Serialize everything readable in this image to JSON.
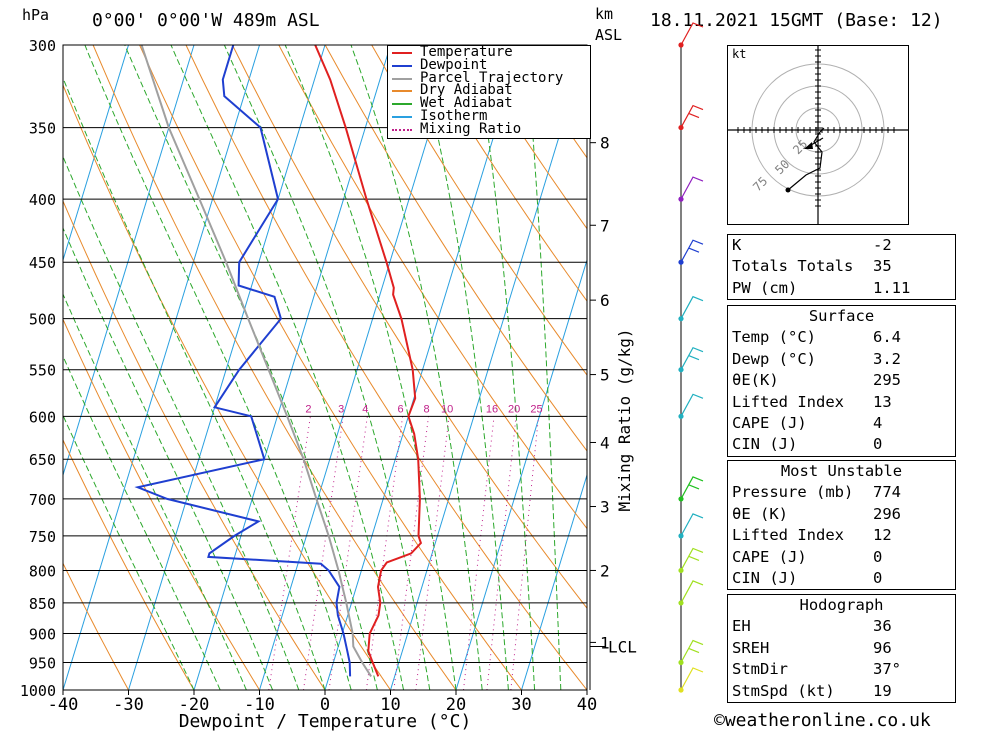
{
  "header": {
    "unit_left": "hPa",
    "location": "0°00' 0°00'W 489m ASL",
    "unit_km": "km",
    "unit_asl": "ASL",
    "datetime": "18.11.2021 15GMT (Base: 12)"
  },
  "axes": {
    "xlabel": "Dewpoint / Temperature (°C)",
    "mixing_label": "Mixing Ratio (g/kg)",
    "lcl_label": "LCL",
    "kt_label": "kt"
  },
  "legend": [
    {
      "label": "Temperature",
      "color": "#e02020"
    },
    {
      "label": "Dewpoint",
      "color": "#1f3fd0"
    },
    {
      "label": "Parcel Trajectory",
      "color": "#a0a0a0"
    },
    {
      "label": "Dry Adiabat",
      "color": "#e88a2c"
    },
    {
      "label": "Wet Adiabat",
      "color": "#2ca82c"
    },
    {
      "label": "Isotherm",
      "color": "#2aa0e0"
    },
    {
      "label": "Mixing Ratio",
      "color": "#c0208a",
      "dotted": true
    }
  ],
  "chart_data": {
    "type": "line",
    "title": "0°00' 0°00'W 489m ASL",
    "xlabel": "Dewpoint / Temperature (°C)",
    "ylabel": "hPa",
    "pressure_levels": [
      300,
      350,
      400,
      450,
      500,
      550,
      600,
      650,
      700,
      750,
      800,
      850,
      900,
      950,
      1000
    ],
    "x_ticks": [
      -40,
      -30,
      -20,
      -10,
      0,
      10,
      20,
      30,
      40
    ],
    "height_km_ticks": [
      {
        "label": "1",
        "p": 915
      },
      {
        "label": "2",
        "p": 800
      },
      {
        "label": "3",
        "p": 710
      },
      {
        "label": "4",
        "p": 630
      },
      {
        "label": "5",
        "p": 555
      },
      {
        "label": "6",
        "p": 483
      },
      {
        "label": "7",
        "p": 420
      },
      {
        "label": "8",
        "p": 360
      }
    ],
    "lcl_p": 922,
    "mixing_ratio_labels": [
      "2",
      "3",
      "4",
      "6",
      "8",
      "10",
      "16",
      "20",
      "25"
    ],
    "mixing_ratio_values": [
      2,
      3,
      4,
      6,
      8,
      10,
      16,
      20,
      25
    ],
    "series": [
      {
        "name": "Temperature",
        "color": "#e02020",
        "points": [
          [
            975,
            7.5
          ],
          [
            950,
            6.0
          ],
          [
            930,
            4.8
          ],
          [
            900,
            4.2
          ],
          [
            870,
            4.7
          ],
          [
            850,
            4.4
          ],
          [
            825,
            3.3
          ],
          [
            800,
            3.0
          ],
          [
            788,
            3.5
          ],
          [
            775,
            6.8
          ],
          [
            760,
            7.8
          ],
          [
            750,
            7.1
          ],
          [
            700,
            5.6
          ],
          [
            650,
            3.5
          ],
          [
            620,
            1.7
          ],
          [
            600,
            0.0
          ],
          [
            580,
            0.2
          ],
          [
            550,
            -1.5
          ],
          [
            500,
            -5.6
          ],
          [
            478,
            -8.0
          ],
          [
            472,
            -8.2
          ],
          [
            450,
            -10.5
          ],
          [
            400,
            -16.5
          ],
          [
            350,
            -23.0
          ],
          [
            320,
            -27.6
          ],
          [
            300,
            -31.5
          ]
        ]
      },
      {
        "name": "Dewpoint",
        "color": "#1f3fd0",
        "points": [
          [
            975,
            3.2
          ],
          [
            950,
            2.5
          ],
          [
            930,
            1.6
          ],
          [
            900,
            0.2
          ],
          [
            870,
            -1.5
          ],
          [
            850,
            -2.3
          ],
          [
            825,
            -2.6
          ],
          [
            800,
            -5.0
          ],
          [
            790,
            -6.5
          ],
          [
            780,
            -24.0
          ],
          [
            775,
            -24.0
          ],
          [
            750,
            -21.0
          ],
          [
            730,
            -18.0
          ],
          [
            700,
            -33.0
          ],
          [
            685,
            -38.0
          ],
          [
            650,
            -20.0
          ],
          [
            600,
            -24.0
          ],
          [
            590,
            -30.0
          ],
          [
            550,
            -28.0
          ],
          [
            500,
            -24.0
          ],
          [
            480,
            -26.0
          ],
          [
            470,
            -32.0
          ],
          [
            450,
            -33.0
          ],
          [
            400,
            -30.0
          ],
          [
            350,
            -36.0
          ],
          [
            330,
            -43.0
          ],
          [
            320,
            -44.0
          ],
          [
            300,
            -44.0
          ]
        ]
      },
      {
        "name": "Parcel Trajectory",
        "color": "#a0a0a0",
        "points": [
          [
            975,
            6.4
          ],
          [
            950,
            4.4
          ],
          [
            922,
            2.3
          ],
          [
            900,
            1.6
          ],
          [
            850,
            -0.8
          ],
          [
            800,
            -3.5
          ],
          [
            750,
            -6.6
          ],
          [
            700,
            -10.2
          ],
          [
            650,
            -14.0
          ],
          [
            600,
            -18.5
          ],
          [
            550,
            -23.5
          ],
          [
            500,
            -29.0
          ],
          [
            450,
            -35.0
          ],
          [
            400,
            -42.0
          ],
          [
            350,
            -50.0
          ],
          [
            300,
            -58.0
          ]
        ]
      }
    ],
    "wind_barbs": [
      {
        "p": 300,
        "color": "#e02020"
      },
      {
        "p": 350,
        "color": "#e02020"
      },
      {
        "p": 400,
        "color": "#9020c0"
      },
      {
        "p": 450,
        "color": "#1f3fd0"
      },
      {
        "p": 500,
        "color": "#20b0c0"
      },
      {
        "p": 550,
        "color": "#20b0c0"
      },
      {
        "p": 600,
        "color": "#20b0c0"
      },
      {
        "p": 700,
        "color": "#20c020"
      },
      {
        "p": 750,
        "color": "#20b0c0"
      },
      {
        "p": 800,
        "color": "#a0e020"
      },
      {
        "p": 850,
        "color": "#a0e020"
      },
      {
        "p": 950,
        "color": "#a0e020"
      },
      {
        "p": 1000,
        "color": "#e0e020"
      }
    ],
    "hodograph_rings": [
      "25",
      "50",
      "75"
    ]
  },
  "indices": [
    {
      "k": "K",
      "v": "-2"
    },
    {
      "k": "Totals Totals",
      "v": "35"
    },
    {
      "k": "PW (cm)",
      "v": "1.11"
    }
  ],
  "surface": {
    "title": "Surface",
    "rows": [
      {
        "k": "Temp (°C)",
        "v": "6.4"
      },
      {
        "k": "Dewp (°C)",
        "v": "3.2"
      },
      {
        "k": "θE(K)",
        "v": "295"
      },
      {
        "k": "Lifted Index",
        "v": "13"
      },
      {
        "k": "CAPE (J)",
        "v": "4"
      },
      {
        "k": "CIN (J)",
        "v": "0"
      }
    ]
  },
  "most_unstable": {
    "title": "Most Unstable",
    "rows": [
      {
        "k": "Pressure (mb)",
        "v": "774"
      },
      {
        "k": "θE (K)",
        "v": "296"
      },
      {
        "k": "Lifted Index",
        "v": "12"
      },
      {
        "k": "CAPE (J)",
        "v": "0"
      },
      {
        "k": "CIN (J)",
        "v": "0"
      }
    ]
  },
  "hodograph_box": {
    "title": "Hodograph",
    "rows": [
      {
        "k": "EH",
        "v": "36"
      },
      {
        "k": "SREH",
        "v": "96"
      },
      {
        "k": "StmDir",
        "v": "37°"
      },
      {
        "k": "StmSpd (kt)",
        "v": "19"
      }
    ]
  },
  "credit": "©weatheronline.co.uk"
}
